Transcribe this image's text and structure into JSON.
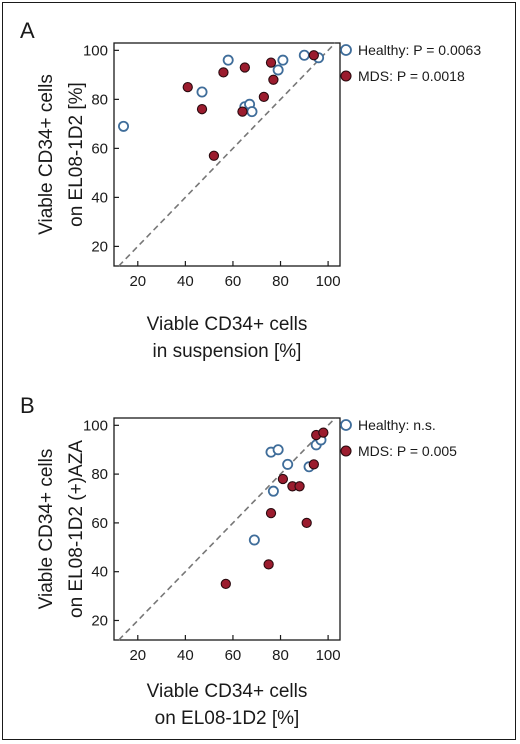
{
  "chart_data": [
    {
      "type": "scatter",
      "panel_label": "A",
      "xlabel": [
        "Viable CD34+ cells",
        "in suspension [%]"
      ],
      "ylabel": [
        "Viable CD34+ cells",
        "on EL08-1D2 [%]"
      ],
      "xlim": [
        10,
        105
      ],
      "ylim": [
        12,
        103
      ],
      "xticks": [
        20,
        40,
        60,
        80,
        100
      ],
      "yticks": [
        20,
        40,
        60,
        80,
        100
      ],
      "reference_line": "y = x (dashed)",
      "grid": false,
      "legend_position": "top-right, outside plot",
      "series": [
        {
          "name": "Healthy: P = 0.0063",
          "marker": "open-circle",
          "color": "#3f6d9a",
          "points": [
            [
              14,
              69
            ],
            [
              47,
              83
            ],
            [
              58,
              96
            ],
            [
              65,
              77
            ],
            [
              67,
              78
            ],
            [
              68,
              75
            ],
            [
              79,
              92
            ],
            [
              81,
              96
            ],
            [
              90,
              98
            ],
            [
              96,
              97
            ]
          ]
        },
        {
          "name": "MDS: P = 0.0018",
          "marker": "filled-circle",
          "color": "#9b1c2e",
          "points": [
            [
              41,
              85
            ],
            [
              47,
              76
            ],
            [
              52,
              57
            ],
            [
              56,
              91
            ],
            [
              64,
              75
            ],
            [
              65,
              93
            ],
            [
              73,
              81
            ],
            [
              76,
              95
            ],
            [
              77,
              88
            ],
            [
              94,
              98
            ]
          ]
        }
      ]
    },
    {
      "type": "scatter",
      "panel_label": "B",
      "xlabel": [
        "Viable CD34+ cells",
        "on EL08-1D2 [%]"
      ],
      "ylabel": [
        "Viable CD34+ cells",
        "on EL08-1D2 (+)AZA"
      ],
      "xlim": [
        10,
        105
      ],
      "ylim": [
        12,
        103
      ],
      "xticks": [
        20,
        40,
        60,
        80,
        100
      ],
      "yticks": [
        20,
        40,
        60,
        80,
        100
      ],
      "reference_line": "y = x (dashed)",
      "grid": false,
      "legend_position": "top-right, outside plot",
      "series": [
        {
          "name": "Healthy: n.s.",
          "marker": "open-circle",
          "color": "#3f6d9a",
          "points": [
            [
              69,
              53
            ],
            [
              76,
              89
            ],
            [
              77,
              73
            ],
            [
              79,
              90
            ],
            [
              83,
              84
            ],
            [
              92,
              83
            ],
            [
              95,
              92
            ],
            [
              97,
              94
            ]
          ]
        },
        {
          "name": "MDS: P = 0.005",
          "marker": "filled-circle",
          "color": "#9b1c2e",
          "points": [
            [
              57,
              35
            ],
            [
              75,
              43
            ],
            [
              76,
              64
            ],
            [
              81,
              78
            ],
            [
              85,
              75
            ],
            [
              88,
              75
            ],
            [
              91,
              60
            ],
            [
              94,
              84
            ],
            [
              95,
              96
            ],
            [
              98,
              97
            ]
          ]
        }
      ]
    }
  ]
}
